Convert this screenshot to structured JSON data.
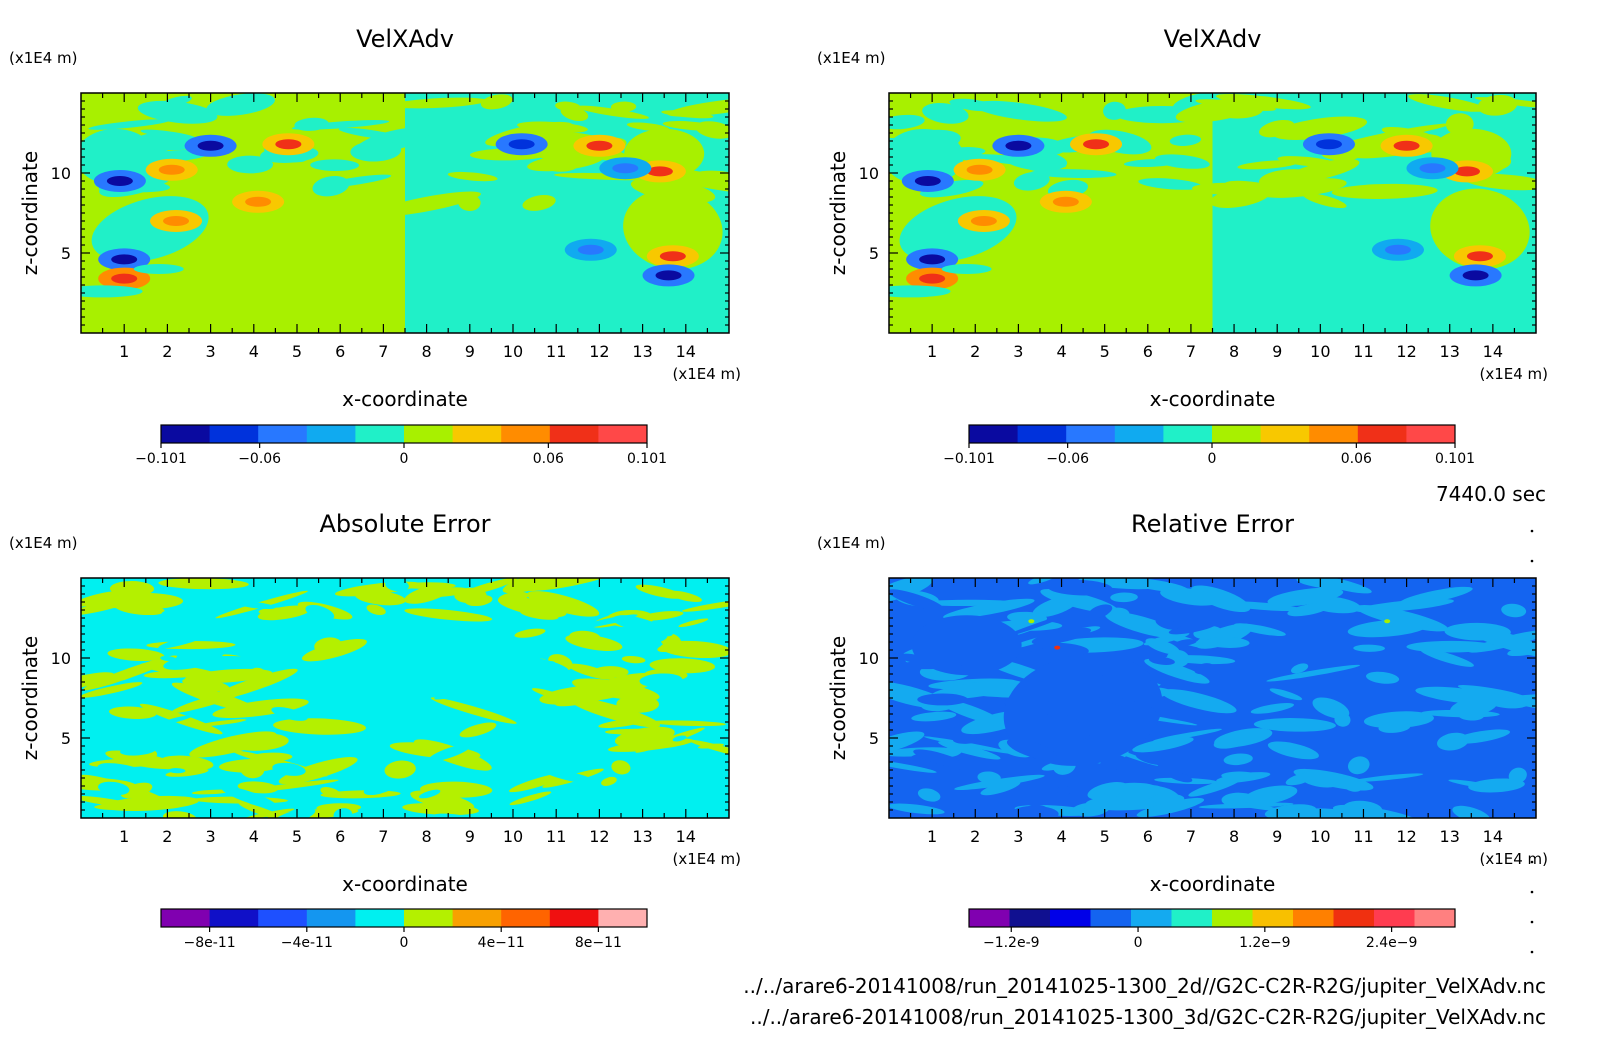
{
  "time_label": "7440.0 sec",
  "files": [
    "../../arare6-20141008/run_20141025-1300_2d//G2C-C2R-R2G/jupiter_VelXAdv.nc",
    "../../arare6-20141008/run_20141025-1300_3d/G2C-C2R-R2G/jupiter_VelXAdv.nc"
  ],
  "chart_data": [
    {
      "type": "heatmap",
      "title": "VelXAdv",
      "xlabel": "x-coordinate",
      "ylabel": "z-coordinate",
      "x_unit": "(x1E4 m)",
      "y_unit": "(x1E4 m)",
      "x_ticks": [
        "1",
        "2",
        "3",
        "4",
        "5",
        "6",
        "7",
        "8",
        "9",
        "10",
        "11",
        "12",
        "13",
        "14"
      ],
      "y_ticks": [
        "5",
        "10"
      ],
      "xlim": [
        0,
        15
      ],
      "ylim": [
        0,
        15
      ],
      "pattern": "velocity",
      "colorbar": {
        "labels": [
          "-0.101",
          "-0.06",
          "0",
          "0.06",
          "0.101"
        ],
        "label_values": [
          -0.101,
          -0.06,
          0,
          0.06,
          0.101
        ],
        "range": [
          -0.101,
          0.101
        ],
        "colors": [
          "#0a0aa0",
          "#0032dc",
          "#2878ff",
          "#10aaf0",
          "#20f0c8",
          "#a8f000",
          "#f8c800",
          "#ff8c00",
          "#f03018",
          "#ff4848"
        ]
      }
    },
    {
      "type": "heatmap",
      "title": "VelXAdv",
      "xlabel": "x-coordinate",
      "ylabel": "z-coordinate",
      "x_unit": "(x1E4 m)",
      "y_unit": "(x1E4 m)",
      "x_ticks": [
        "1",
        "2",
        "3",
        "4",
        "5",
        "6",
        "7",
        "8",
        "9",
        "10",
        "11",
        "12",
        "13",
        "14"
      ],
      "y_ticks": [
        "5",
        "10"
      ],
      "xlim": [
        0,
        15
      ],
      "ylim": [
        0,
        15
      ],
      "pattern": "velocity",
      "colorbar": {
        "labels": [
          "-0.101",
          "-0.06",
          "0",
          "0.06",
          "0.101"
        ],
        "label_values": [
          -0.101,
          -0.06,
          0,
          0.06,
          0.101
        ],
        "range": [
          -0.101,
          0.101
        ],
        "colors": [
          "#0a0aa0",
          "#0032dc",
          "#2878ff",
          "#10aaf0",
          "#20f0c8",
          "#a8f000",
          "#f8c800",
          "#ff8c00",
          "#f03018",
          "#ff4848"
        ]
      }
    },
    {
      "type": "heatmap",
      "title": "Absolute Error",
      "xlabel": "x-coordinate",
      "ylabel": "z-coordinate",
      "x_unit": "(x1E4 m)",
      "y_unit": "(x1E4 m)",
      "x_ticks": [
        "1",
        "2",
        "3",
        "4",
        "5",
        "6",
        "7",
        "8",
        "9",
        "10",
        "11",
        "12",
        "13",
        "14"
      ],
      "y_ticks": [
        "5",
        "10"
      ],
      "xlim": [
        0,
        15
      ],
      "ylim": [
        0,
        15
      ],
      "pattern": "abserr",
      "colorbar": {
        "labels": [
          "-8e-11",
          "-4e-11",
          "0",
          "4e-11",
          "8e-11"
        ],
        "label_values": [
          -8e-11,
          -4e-11,
          0,
          4e-11,
          8e-11
        ],
        "range": [
          -1e-10,
          1e-10
        ],
        "colors": [
          "#8000b0",
          "#1010c8",
          "#1e50ff",
          "#1496f0",
          "#00f0f0",
          "#b4f000",
          "#f8a000",
          "#ff6400",
          "#f01010",
          "#ffb0b0"
        ]
      }
    },
    {
      "type": "heatmap",
      "title": "Relative Error",
      "xlabel": "x-coordinate",
      "ylabel": "z-coordinate",
      "x_unit": "(x1E4 m)",
      "y_unit": "(x1E4 m)",
      "x_ticks": [
        "1",
        "2",
        "3",
        "4",
        "5",
        "6",
        "7",
        "8",
        "9",
        "10",
        "11",
        "12",
        "13",
        "14"
      ],
      "y_ticks": [
        "5",
        "10"
      ],
      "xlim": [
        0,
        15
      ],
      "ylim": [
        0,
        15
      ],
      "pattern": "relerr",
      "colorbar": {
        "labels": [
          "-1.2e-9",
          "0",
          "1.2e-9",
          "2.4e-9"
        ],
        "label_values": [
          -1.2e-09,
          0,
          1.2e-09,
          2.4e-09
        ],
        "range": [
          -1.6e-09,
          3e-09
        ],
        "colors": [
          "#8000b0",
          "#101090",
          "#0000e8",
          "#1464f0",
          "#14aaf0",
          "#20f0c8",
          "#a8f000",
          "#f8c000",
          "#ff8000",
          "#f03010",
          "#ff3c50",
          "#ff8080"
        ]
      }
    }
  ]
}
